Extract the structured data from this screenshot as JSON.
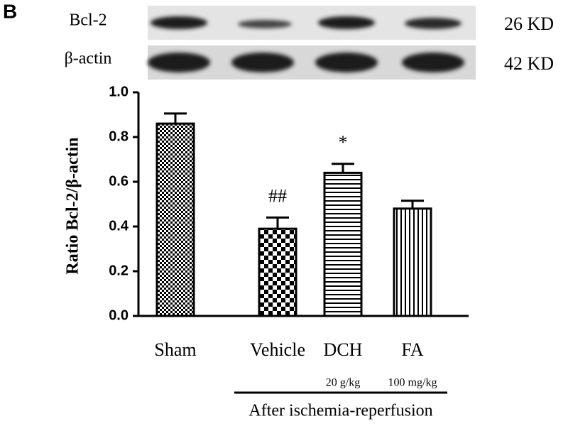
{
  "chart_data": {
    "type": "bar",
    "panel_label": "B",
    "y_label": "Ratio Bcl-2/β-actin",
    "categories": [
      "Sham",
      "Vehicle",
      "DCH",
      "FA"
    ],
    "values": [
      0.86,
      0.39,
      0.64,
      0.48
    ],
    "errors": [
      0.045,
      0.05,
      0.04,
      0.035
    ],
    "annotations": [
      null,
      "##",
      "*",
      null
    ],
    "dose_labels": [
      null,
      null,
      "20 g/kg",
      "100 mg/kg"
    ],
    "group_label": "After ischemia-reperfusion",
    "patterns": [
      "fine-check",
      "check",
      "hlines",
      "vlines"
    ],
    "color": "#000000",
    "ylim": [
      0,
      1
    ],
    "yticks": [
      {
        "value": 0,
        "label": "0.0"
      },
      0.2,
      0.4,
      0.6,
      0.8,
      {
        "value": 1,
        "label": "1.0"
      }
    ]
  },
  "blot": {
    "rows": [
      {
        "label": "Bcl-2",
        "size": "26 KD"
      },
      {
        "label": "β-actin",
        "size": "42 KD"
      }
    ]
  }
}
